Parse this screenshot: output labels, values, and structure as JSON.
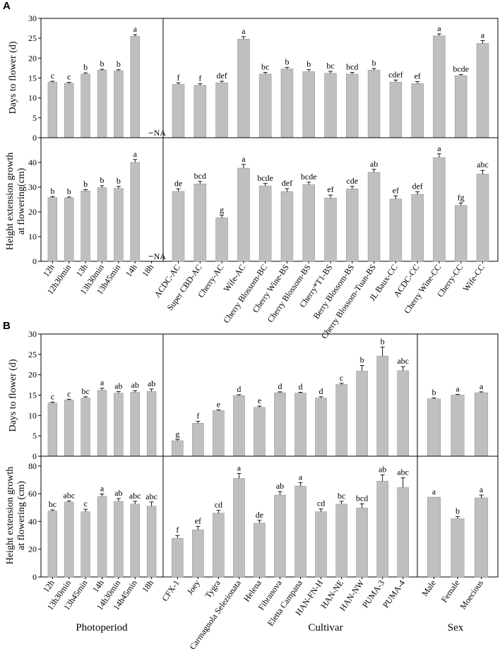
{
  "panel_labels": [
    "A",
    "B"
  ],
  "group_labels": {
    "photoperiod": "Photoperiod",
    "cultivar": "Cultivar",
    "sex": "Sex"
  },
  "chart_data": [
    {
      "panel": "A",
      "type": "bar",
      "ylabel": "Days to flower (d)",
      "ylim": [
        0,
        30
      ],
      "yticks": [
        0,
        5,
        10,
        15,
        20,
        25,
        30
      ],
      "groups": [
        {
          "name": "Photoperiod",
          "categories": [
            "12h",
            "12h30min",
            "13h",
            "13h30min",
            "13h45min",
            "14h",
            "18h"
          ],
          "values": [
            14.0,
            13.7,
            16.0,
            17.0,
            16.8,
            25.5,
            null
          ],
          "errors": [
            0.2,
            0.2,
            0.3,
            0.2,
            0.3,
            0.4,
            null
          ],
          "letters": [
            "c",
            "c",
            "b",
            "b",
            "b",
            "a",
            "NA"
          ]
        },
        {
          "name": "Cultivar",
          "categories": [
            "ACDC-AC",
            "Super CBD-AC",
            "Cherry-AC",
            "Wife-AC",
            "Cherry Blossom-BC",
            "Cherry Wine-BS",
            "Cherry Blossom-BS",
            "Cherry*T1-BS",
            "Berry Blossom-BS",
            "Cherry Blossom-Tuan-BS",
            "JL Baux-CC",
            "ACDC-CC",
            "Cherry Wine-CC",
            "Cherry-CC",
            "Wife-CC"
          ],
          "values": [
            13.4,
            13.2,
            13.8,
            24.8,
            16.0,
            17.3,
            16.6,
            16.2,
            16.0,
            17.0,
            14.0,
            13.6,
            25.6,
            15.6,
            23.7
          ],
          "errors": [
            0.4,
            0.4,
            0.4,
            0.6,
            0.4,
            0.4,
            0.5,
            0.5,
            0.4,
            0.4,
            0.5,
            0.5,
            0.5,
            0.3,
            0.7
          ],
          "letters": [
            "f",
            "f",
            "def",
            "a",
            "bc",
            "b",
            "b",
            "bc",
            "bcd",
            "b",
            "cdef",
            "ef",
            "a",
            "bcde",
            "a"
          ]
        }
      ]
    },
    {
      "panel": "A",
      "type": "bar",
      "ylabel": "Height extension growth at flowering(cm)",
      "ylim": [
        0,
        50
      ],
      "yticks": [
        0,
        10,
        20,
        30,
        40
      ],
      "groups": [
        {
          "name": "Photoperiod",
          "categories": [
            "12h",
            "12h30min",
            "13h",
            "13h30min",
            "13h45min",
            "14h",
            "18h"
          ],
          "values": [
            25.8,
            25.7,
            28.5,
            29.8,
            29.5,
            40.0,
            null
          ],
          "errors": [
            0.4,
            0.3,
            0.5,
            0.8,
            0.8,
            1.2,
            null
          ],
          "letters": [
            "b",
            "b",
            "b",
            "b",
            "b",
            "a",
            "NA"
          ]
        },
        {
          "name": "Cultivar",
          "categories": [
            "ACDC-AC",
            "Super CBD-AC",
            "Cherry-AC",
            "Wife-AC",
            "Cherry Blossom-BC",
            "Cherry Wine-BS",
            "Cherry Blossom-BS",
            "Cherry*T1-BS",
            "Berry Blossom-BS",
            "Cherry Blossom-Tuan-BS",
            "JL Baux-CC",
            "ACDC-CC",
            "Cherry Wine-CC",
            "Cherry-CC",
            "Wife-CC"
          ],
          "values": [
            28.3,
            31.3,
            17.6,
            37.7,
            30.5,
            28.2,
            31.0,
            25.6,
            29.3,
            36.0,
            25.2,
            27.1,
            42.0,
            22.6,
            35.3
          ],
          "errors": [
            1.0,
            1.0,
            1.0,
            1.5,
            1.0,
            1.2,
            1.0,
            1.2,
            1.0,
            1.2,
            1.3,
            1.0,
            1.5,
            1.0,
            1.5
          ],
          "letters": [
            "de",
            "bcd",
            "g",
            "a",
            "bcde",
            "def",
            "bcde",
            "ef",
            "cde",
            "ab",
            "ef",
            "def",
            "a",
            "fg",
            "abc"
          ]
        }
      ]
    },
    {
      "panel": "B",
      "type": "bar",
      "ylabel": "Days to flower (d)",
      "ylim": [
        0,
        30
      ],
      "yticks": [
        0,
        5,
        10,
        15,
        20,
        25,
        30
      ],
      "groups": [
        {
          "name": "Photoperiod",
          "categories": [
            "12h",
            "13h30min",
            "13h45min",
            "14h",
            "14h30min",
            "14h45min",
            "18h"
          ],
          "values": [
            13.1,
            13.8,
            14.3,
            16.2,
            15.5,
            15.7,
            15.9
          ],
          "errors": [
            0.2,
            0.2,
            0.3,
            0.5,
            0.4,
            0.4,
            0.6
          ],
          "letters": [
            "c",
            "c",
            "bc",
            "a",
            "ab",
            "ab",
            "ab"
          ]
        },
        {
          "name": "Cultivar",
          "categories": [
            "CFX-1",
            "Joey",
            "Tygra",
            "Carmagnola Selezionata",
            "Helena",
            "Fibranova",
            "Eletta Campana",
            "HAN-FN-H",
            "HAN-NE",
            "HAN-NW",
            "PUMA-3",
            "PUMA-4"
          ],
          "values": [
            3.8,
            8.1,
            11.2,
            14.9,
            12.0,
            15.6,
            15.5,
            14.3,
            17.6,
            20.9,
            24.6,
            21.0
          ],
          "errors": [
            0.3,
            0.5,
            0.2,
            0.2,
            0.3,
            0.2,
            0.2,
            0.3,
            0.3,
            1.4,
            2.2,
            1.0
          ],
          "letters": [
            "g",
            "f",
            "e",
            "d",
            "e",
            "d",
            "d",
            "d",
            "c",
            "b",
            "b",
            "abc"
          ]
        },
        {
          "name": "Sex",
          "categories": [
            "Male",
            "Female",
            "Moecious"
          ],
          "values": [
            14.1,
            15.0,
            15.6
          ],
          "errors": [
            0.2,
            0.2,
            0.2
          ],
          "letters": [
            "b",
            "a",
            "a"
          ]
        }
      ]
    },
    {
      "panel": "B",
      "type": "bar",
      "ylabel": "Height extension growth at flowering (cm)",
      "ylim": [
        0,
        87
      ],
      "yticks": [
        0,
        20,
        40,
        60,
        80
      ],
      "groups": [
        {
          "name": "Photoperiod",
          "categories": [
            "12h",
            "13h30min",
            "13h45min",
            "14h",
            "14h30min",
            "14h45min",
            "18h"
          ],
          "values": [
            47.5,
            54.0,
            47.0,
            58.0,
            54.5,
            52.5,
            51.0
          ],
          "errors": [
            0.8,
            0.8,
            1.8,
            1.8,
            2.0,
            2.0,
            3.0
          ],
          "letters": [
            "bc",
            "abc",
            "c",
            "a",
            "ab",
            "abc",
            "abc"
          ]
        },
        {
          "name": "Cultivar",
          "categories": [
            "CFX-1",
            "Joey",
            "Tygra",
            "Carmagnola Selezionata",
            "Helena",
            "Fibranova",
            "Eletta Campana",
            "HAN-FN-H",
            "HAN-NE",
            "HAN-NW",
            "PUMA-3",
            "PUMA-4"
          ],
          "values": [
            27.9,
            34.0,
            46.0,
            71.0,
            38.8,
            59.0,
            65.5,
            47.0,
            52.5,
            49.7,
            69.0,
            64.4
          ],
          "errors": [
            2.0,
            2.5,
            2.0,
            3.5,
            2.0,
            2.5,
            2.5,
            2.0,
            2.0,
            3.0,
            4.5,
            7.0
          ],
          "letters": [
            "f",
            "ef",
            "cd",
            "a",
            "de",
            "ab",
            "a",
            "cd",
            "bc",
            "bcd",
            "ab",
            "abc"
          ]
        },
        {
          "name": "Sex",
          "categories": [
            "Male",
            "Female",
            "Moecious"
          ],
          "values": [
            57.5,
            42.0,
            57.0
          ],
          "errors": [
            0.0,
            1.5,
            2.0
          ],
          "letters": [
            "a",
            "b",
            "a"
          ]
        }
      ]
    }
  ]
}
